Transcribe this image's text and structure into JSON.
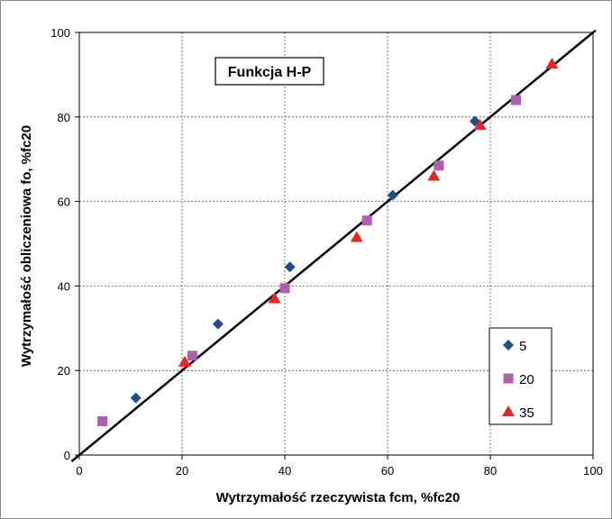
{
  "chart_data": {
    "type": "scatter",
    "title": "Funkcja  H-P",
    "xlabel": "Wytrzymałość  rzeczywista fcm,  %fc20",
    "ylabel": "Wytrzymałość  obliczeniowa  fo,  %fc20",
    "xlim": [
      0,
      100
    ],
    "ylim": [
      0,
      100
    ],
    "x_ticks": [
      "0",
      "20",
      "40",
      "60",
      "80",
      "100"
    ],
    "y_ticks": [
      "0",
      "20",
      "40",
      "60",
      "80",
      "100"
    ],
    "grid": "major, dashed",
    "legend_position": "lower-right",
    "reference_line": {
      "from": [
        0,
        0
      ],
      "to": [
        100,
        100
      ],
      "color": "#000000"
    },
    "series": [
      {
        "name": "5",
        "marker": "diamond",
        "color": "#1f4e8c",
        "points": [
          [
            11,
            13.5
          ],
          [
            27,
            31
          ],
          [
            41,
            44.5
          ],
          [
            61,
            61.5
          ],
          [
            77,
            79
          ]
        ]
      },
      {
        "name": "20",
        "marker": "square",
        "color": "#b05fb0",
        "points": [
          [
            4.5,
            8
          ],
          [
            22,
            23.5
          ],
          [
            40,
            39.5
          ],
          [
            56,
            55.5
          ],
          [
            70,
            68.5
          ],
          [
            85,
            84
          ]
        ]
      },
      {
        "name": "35",
        "marker": "triangle",
        "color": "#ee2222",
        "points": [
          [
            20.5,
            22
          ],
          [
            38,
            37
          ],
          [
            54,
            51.5
          ],
          [
            69,
            66
          ],
          [
            78,
            78
          ],
          [
            92,
            92.5
          ]
        ]
      }
    ]
  }
}
